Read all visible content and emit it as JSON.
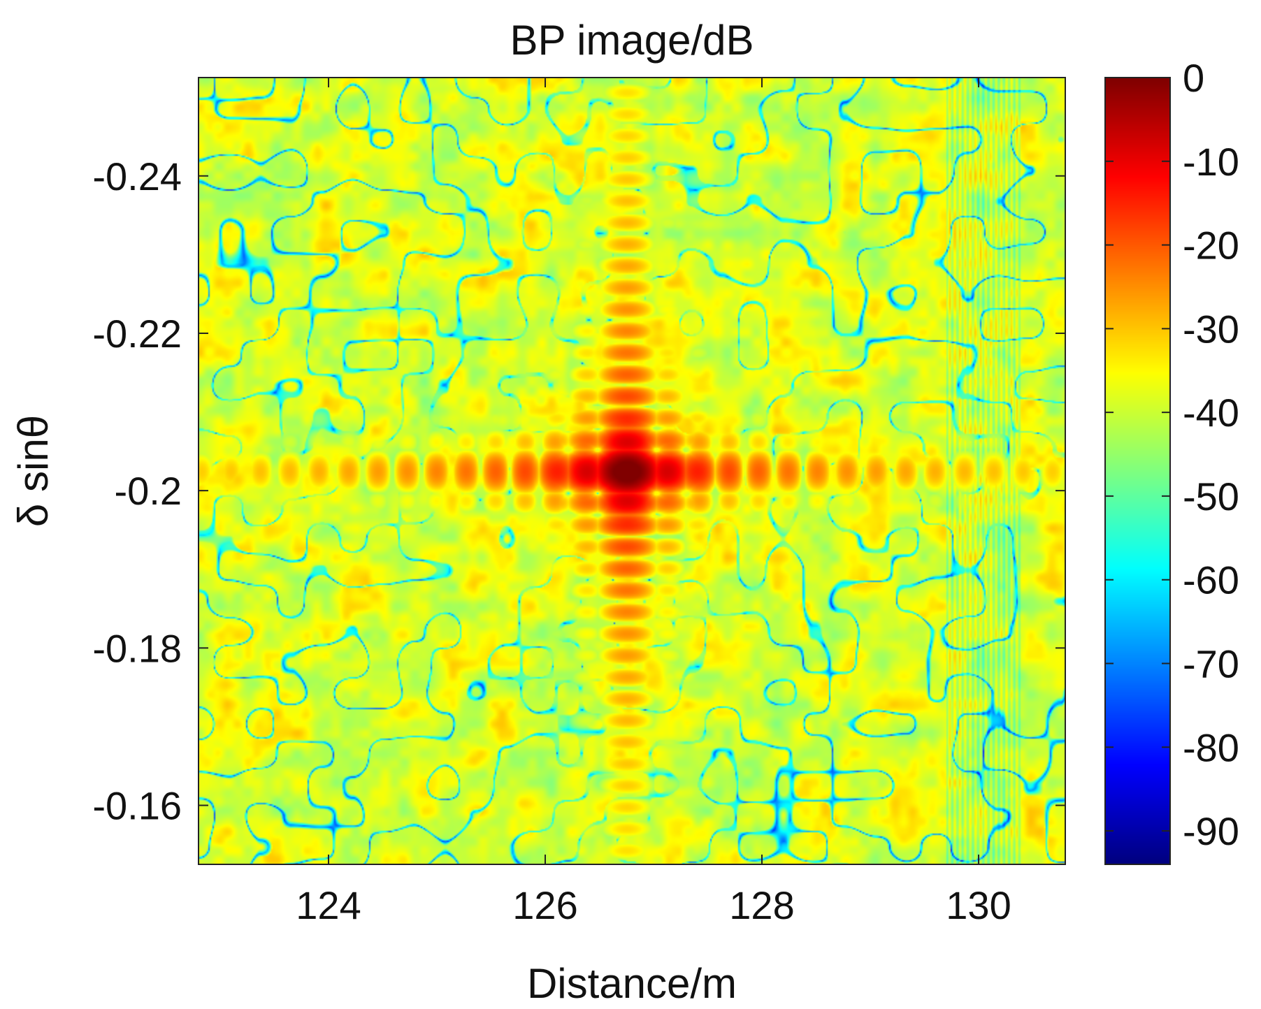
{
  "chart_data": {
    "type": "heatmap",
    "title": "BP image/dB",
    "xlabel": "Distance/m",
    "ylabel": "δ sinθ",
    "xlim": [
      122.8,
      130.8
    ],
    "ylim": [
      -0.2525,
      -0.1525
    ],
    "y_reversed": true,
    "x_ticks": [
      124,
      126,
      128,
      130
    ],
    "x_tick_labels": [
      "124",
      "126",
      "128",
      "130"
    ],
    "y_ticks": [
      -0.24,
      -0.22,
      -0.2,
      -0.18,
      -0.16
    ],
    "y_tick_labels": [
      "-0.24",
      "-0.22",
      "-0.2",
      "-0.18",
      "-0.16"
    ],
    "peak": {
      "x": 126.75,
      "y": -0.2025,
      "value": 0
    },
    "colorbar": {
      "colormap": "jet",
      "limits": [
        -94,
        0
      ],
      "ticks": [
        0,
        -10,
        -20,
        -30,
        -40,
        -50,
        -60,
        -70,
        -80,
        -90
      ],
      "tick_labels": [
        "0",
        "-10",
        "-20",
        "-30",
        "-40",
        "-50",
        "-60",
        "-70",
        "-80",
        "-90"
      ]
    },
    "grid": false
  }
}
